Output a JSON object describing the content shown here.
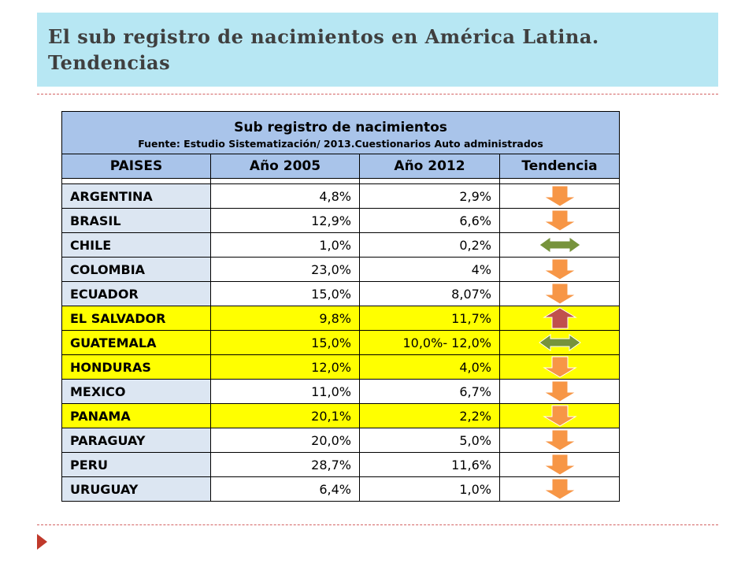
{
  "slide": {
    "title": "El sub registro de nacimientos en América Latina. Tendencias"
  },
  "table": {
    "caption_title": "Sub registro de nacimientos",
    "caption_source": "Fuente: Estudio Sistematización/ 2013.Cuestionarios Auto administrados",
    "headers": [
      "PAISES",
      "Año 2005",
      "Año 2012",
      "Tendencia"
    ],
    "rows": [
      {
        "country": "ARGENTINA",
        "y2005": "4,8%",
        "y2012": "2,9%",
        "trend": "down",
        "highlight": false
      },
      {
        "country": "BRASIL",
        "y2005": "12,9%",
        "y2012": "6,6%",
        "trend": "down",
        "highlight": false
      },
      {
        "country": "CHILE",
        "y2005": "1,0%",
        "y2012": "0,2%",
        "trend": "stable",
        "highlight": false
      },
      {
        "country": "COLOMBIA",
        "y2005": "23,0%",
        "y2012": "4%",
        "trend": "down",
        "highlight": false
      },
      {
        "country": "ECUADOR",
        "y2005": "15,0%",
        "y2012": "8,07%",
        "trend": "down",
        "highlight": false
      },
      {
        "country": "EL SALVADOR",
        "y2005": "9,8%",
        "y2012": "11,7%",
        "trend": "up",
        "highlight": true
      },
      {
        "country": "GUATEMALA",
        "y2005": "15,0%",
        "y2012": "10,0%- 12,0%",
        "trend": "stable",
        "highlight": true
      },
      {
        "country": "HONDURAS",
        "y2005": "12,0%",
        "y2012": "4,0%",
        "trend": "down",
        "highlight": true
      },
      {
        "country": "MEXICO",
        "y2005": "11,0%",
        "y2012": "6,7%",
        "trend": "down",
        "highlight": false
      },
      {
        "country": "PANAMA",
        "y2005": "20,1%",
        "y2012": "2,2%",
        "trend": "down",
        "highlight": true
      },
      {
        "country": "PARAGUAY",
        "y2005": "20,0%",
        "y2012": "5,0%",
        "trend": "down",
        "highlight": false
      },
      {
        "country": "PERU",
        "y2005": "28,7%",
        "y2012": "11,6%",
        "trend": "down",
        "highlight": false
      },
      {
        "country": "URUGUAY",
        "y2005": "6,4%",
        "y2012": "1,0%",
        "trend": "down",
        "highlight": false
      }
    ]
  },
  "icons": {
    "down": "down-arrow-icon",
    "up": "up-arrow-icon",
    "stable": "left-right-arrow-icon"
  },
  "colors": {
    "title_bar": "#b7e7f3",
    "header_fill": "#a9c4ea",
    "country_fill": "#dce6f2",
    "highlight": "#ffff00",
    "arrow_down": "#f79646",
    "arrow_up": "#c0504d",
    "arrow_stable": "#77933c",
    "accent_red": "#c0392b"
  }
}
